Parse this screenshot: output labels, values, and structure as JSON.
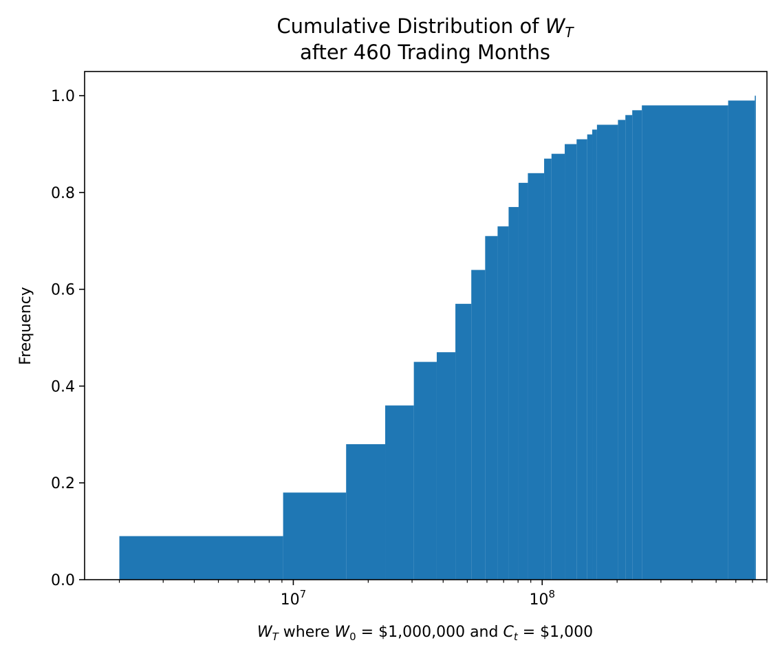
{
  "chart_data": {
    "type": "histogram",
    "cumulative": true,
    "title_line1": "Cumulative Distribution of W",
    "title_line1_sub": "T",
    "title_line2": "after 460 Trading Months",
    "ylabel": "Frequency",
    "xlabel": {
      "w": "W",
      "w_sub": "T",
      "where": " where ",
      "w0": "W",
      "w0_sub": "0",
      "w0_value": " = $1,000,000 and  ",
      "c": "C",
      "c_sub": "t",
      "c_value": " = $1,000"
    },
    "x_scale": "log",
    "xlim": [
      1450000,
      800000000
    ],
    "ylim": [
      0,
      1.05
    ],
    "x_ticks": [
      {
        "base": "10",
        "exp": "7",
        "value": 10000000
      },
      {
        "base": "10",
        "exp": "8",
        "value": 100000000
      }
    ],
    "y_ticks": [
      {
        "label": "0.0",
        "value": 0.0
      },
      {
        "label": "0.2",
        "value": 0.2
      },
      {
        "label": "0.4",
        "value": 0.4
      },
      {
        "label": "0.6",
        "value": 0.6
      },
      {
        "label": "0.8",
        "value": 0.8
      },
      {
        "label": "1.0",
        "value": 1.0
      }
    ],
    "bar_color": "#1f77b4",
    "bins": [
      {
        "x0": 2000000,
        "x1": 9100000,
        "y": 0.09
      },
      {
        "x0": 9100000,
        "x1": 16300000,
        "y": 0.18
      },
      {
        "x0": 16300000,
        "x1": 23400000,
        "y": 0.28
      },
      {
        "x0": 23400000,
        "x1": 30500000,
        "y": 0.36
      },
      {
        "x0": 30500000,
        "x1": 37700000,
        "y": 0.45
      },
      {
        "x0": 37700000,
        "x1": 44800000,
        "y": 0.47
      },
      {
        "x0": 44800000,
        "x1": 51900000,
        "y": 0.57
      },
      {
        "x0": 51900000,
        "x1": 59000000,
        "y": 0.64
      },
      {
        "x0": 59000000,
        "x1": 66200000,
        "y": 0.71
      },
      {
        "x0": 66200000,
        "x1": 73300000,
        "y": 0.73
      },
      {
        "x0": 73300000,
        "x1": 80400000,
        "y": 0.77
      },
      {
        "x0": 80400000,
        "x1": 87600000,
        "y": 0.82
      },
      {
        "x0": 87600000,
        "x1": 101800000,
        "y": 0.84
      },
      {
        "x0": 101800000,
        "x1": 109000000,
        "y": 0.87
      },
      {
        "x0": 109000000,
        "x1": 123200000,
        "y": 0.88
      },
      {
        "x0": 123200000,
        "x1": 137500000,
        "y": 0.9
      },
      {
        "x0": 137500000,
        "x1": 151700000,
        "y": 0.91
      },
      {
        "x0": 151700000,
        "x1": 158900000,
        "y": 0.92
      },
      {
        "x0": 158900000,
        "x1": 166000000,
        "y": 0.93
      },
      {
        "x0": 166000000,
        "x1": 201600000,
        "y": 0.94
      },
      {
        "x0": 201600000,
        "x1": 215900000,
        "y": 0.95
      },
      {
        "x0": 215900000,
        "x1": 230100000,
        "y": 0.96
      },
      {
        "x0": 230100000,
        "x1": 251500000,
        "y": 0.97
      },
      {
        "x0": 251500000,
        "x1": 558800000,
        "y": 0.98
      },
      {
        "x0": 558800000,
        "x1": 715000000,
        "y": 0.99
      },
      {
        "x0": 715000000,
        "x1": 722000000,
        "y": 1.0
      }
    ]
  }
}
